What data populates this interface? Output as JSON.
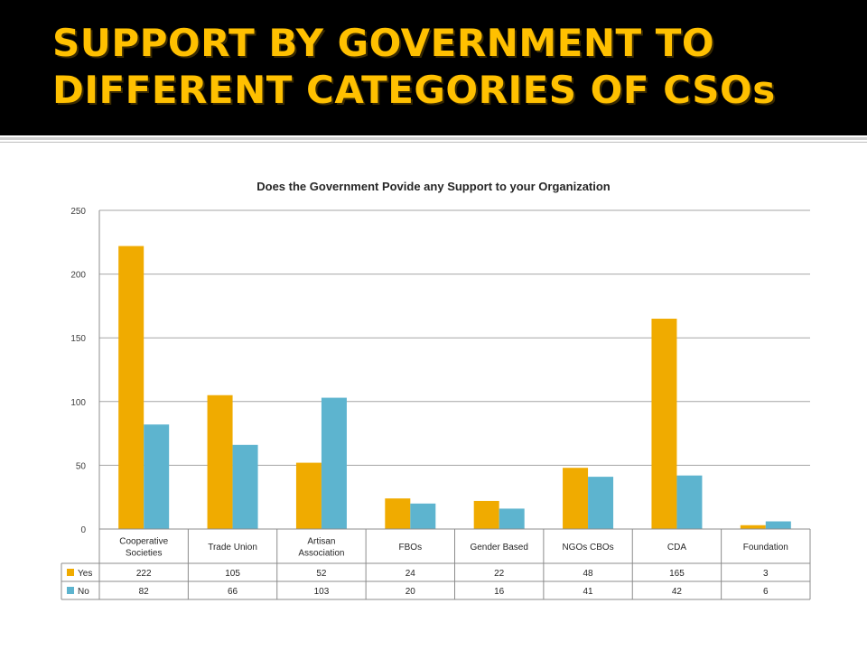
{
  "slide": {
    "title_line1": "SUPPORT BY GOVERNMENT TO",
    "title_line2": "DIFFERENT CATEGORIES OF CSOs"
  },
  "colors": {
    "banner": "#000000",
    "title": "#ffc000",
    "yes": "#f0ab00",
    "no": "#5db4cf"
  },
  "chart_data": {
    "type": "bar",
    "title": "Does the Government Povide any Support to your Organization",
    "categories": [
      [
        "Cooperative",
        "Societies"
      ],
      [
        "Trade Union"
      ],
      [
        "Artisan",
        "Association"
      ],
      [
        "FBOs"
      ],
      [
        "Gender Based"
      ],
      [
        "NGOs CBOs"
      ],
      [
        "CDA"
      ],
      [
        "Foundation"
      ]
    ],
    "series": [
      {
        "name": "Yes",
        "values": [
          222,
          105,
          52,
          24,
          22,
          48,
          165,
          3
        ]
      },
      {
        "name": "No",
        "values": [
          82,
          66,
          103,
          20,
          16,
          41,
          42,
          6
        ]
      }
    ],
    "ylim": [
      0,
      250
    ],
    "yticks": [
      0,
      50,
      100,
      150,
      200,
      250
    ],
    "grid": true,
    "legend": "data table below chart"
  }
}
